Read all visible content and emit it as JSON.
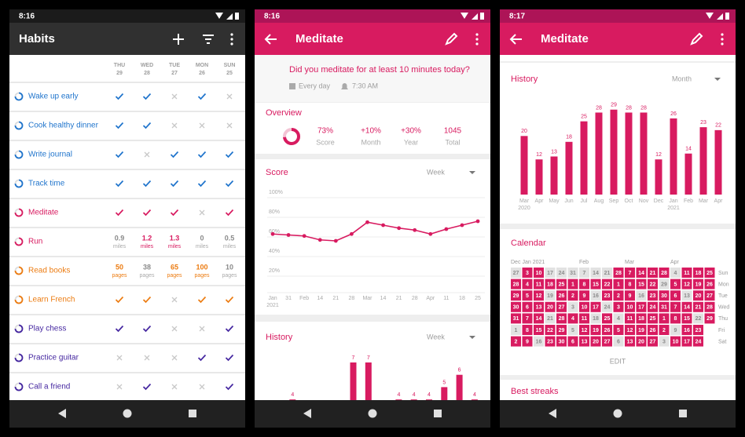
{
  "screens": [
    {
      "time": "8:16",
      "title": "Habits",
      "days": [
        {
          "weekday": "THU",
          "day": 29
        },
        {
          "weekday": "WED",
          "day": 28
        },
        {
          "weekday": "TUE",
          "day": 27
        },
        {
          "weekday": "MON",
          "day": 26
        },
        {
          "weekday": "SUN",
          "day": 25
        }
      ],
      "habits": [
        {
          "name": "Wake up early",
          "color": "#1f74cc",
          "checks": [
            true,
            true,
            false,
            true,
            false
          ]
        },
        {
          "name": "Cook healthy dinner",
          "color": "#1f74cc",
          "checks": [
            true,
            true,
            false,
            false,
            false
          ]
        },
        {
          "name": "Write journal",
          "color": "#1f74cc",
          "checks": [
            true,
            false,
            true,
            true,
            true
          ]
        },
        {
          "name": "Track time",
          "color": "#1f74cc",
          "checks": [
            true,
            true,
            true,
            true,
            true
          ]
        },
        {
          "name": "Meditate",
          "color": "#d81b60",
          "checks": [
            true,
            true,
            true,
            false,
            true
          ]
        },
        {
          "name": "Run",
          "color": "#d81b60",
          "unit": "miles",
          "values": [
            0.9,
            1.2,
            1.3,
            0,
            0.5
          ],
          "met": [
            false,
            true,
            true,
            false,
            false
          ]
        },
        {
          "name": "Read books",
          "color": "#ec7c12",
          "unit": "pages",
          "values": [
            50,
            38,
            65,
            100,
            10
          ],
          "met": [
            true,
            false,
            true,
            true,
            false
          ]
        },
        {
          "name": "Learn French",
          "color": "#ec7c12",
          "checks": [
            true,
            true,
            false,
            true,
            true
          ]
        },
        {
          "name": "Play chess",
          "color": "#4527a0",
          "checks": [
            true,
            true,
            false,
            false,
            true
          ]
        },
        {
          "name": "Practice guitar",
          "color": "#4527a0",
          "checks": [
            false,
            false,
            false,
            true,
            true
          ]
        },
        {
          "name": "Call a friend",
          "color": "#4527a0",
          "checks": [
            false,
            true,
            false,
            false,
            true
          ]
        }
      ]
    },
    {
      "time": "8:16",
      "title": "Meditate",
      "question": "Did you meditate for at least 10 minutes today?",
      "frequency": "Every day",
      "reminder": "7:30 AM",
      "overview": {
        "title": "Overview",
        "color": "#d81b60",
        "items": [
          {
            "value": 73,
            "label": "73%",
            "caption": "Score"
          },
          {
            "value": 10,
            "label": "+10%",
            "caption": "Month"
          },
          {
            "value": 30,
            "label": "+30%",
            "caption": "Year"
          },
          {
            "value": 1045,
            "caption": "Total"
          }
        ]
      },
      "score_chart": {
        "type": "line",
        "title": "Score",
        "period": "Week",
        "color": "#d81b60",
        "categories": [
          "Jan",
          "31",
          "Feb",
          "14",
          "21",
          "28",
          "Mar",
          "14",
          "21",
          "28",
          "Apr",
          "11",
          "18",
          "25"
        ],
        "sublabels": [
          "2021",
          null,
          null,
          null,
          null,
          null,
          null,
          null,
          null,
          null,
          null,
          null,
          null,
          null
        ],
        "values": [
          63,
          62,
          61,
          57,
          56,
          63,
          75,
          72,
          69,
          67,
          63,
          68,
          72,
          76
        ],
        "ylim": [
          0,
          100
        ],
        "yticks": [
          {
            "value": 20,
            "label": "20%"
          },
          {
            "value": 40,
            "label": "40%"
          },
          {
            "value": 60,
            "label": "60%"
          },
          {
            "value": 80,
            "label": "80%"
          },
          {
            "value": 100,
            "label": "100%"
          }
        ]
      },
      "history_chart": {
        "type": "bar",
        "title": "History",
        "period": "Week",
        "color": "#d81b60",
        "values": [
          null,
          4,
          null,
          null,
          null,
          7,
          7,
          null,
          4,
          4,
          4,
          5,
          6,
          4
        ],
        "ylim": [
          0,
          7
        ]
      }
    },
    {
      "time": "8:17",
      "title": "Meditate",
      "history_chart": {
        "type": "bar",
        "title": "History",
        "period": "Month",
        "color": "#d81b60",
        "categories": [
          "Mar",
          "Apr",
          "May",
          "Jun",
          "Jul",
          "Aug",
          "Sep",
          "Oct",
          "Nov",
          "Dec",
          "Jan",
          "Feb",
          "Mar",
          "Apr"
        ],
        "sublabels": [
          "2020",
          null,
          null,
          null,
          null,
          null,
          null,
          null,
          null,
          null,
          "2021",
          null,
          null,
          null
        ],
        "values": [
          20,
          12,
          13,
          18,
          25,
          28,
          29,
          28,
          28,
          12,
          26,
          14,
          23,
          22
        ],
        "ylim": [
          0,
          30
        ]
      },
      "calendar": {
        "title": "Calendar",
        "color": "#d81b60",
        "months": [
          "Dec",
          "Jan 2021",
          "Feb",
          "Mar",
          "Apr"
        ],
        "weekdays": [
          "Sun",
          "Mon",
          "Tue",
          "Wed",
          "Thu",
          "Fri",
          "Sat"
        ],
        "days": [
          [
            27,
            3,
            10,
            17,
            24,
            31,
            7,
            14,
            21,
            28,
            7,
            14,
            21,
            28,
            4,
            11,
            18,
            25
          ],
          [
            28,
            4,
            11,
            18,
            25,
            1,
            8,
            15,
            22,
            1,
            8,
            15,
            22,
            29,
            5,
            12,
            19,
            26
          ],
          [
            29,
            5,
            12,
            19,
            26,
            2,
            9,
            16,
            23,
            2,
            9,
            16,
            23,
            30,
            6,
            13,
            20,
            27
          ],
          [
            30,
            6,
            13,
            20,
            27,
            3,
            10,
            17,
            24,
            3,
            10,
            17,
            24,
            31,
            7,
            14,
            21,
            28
          ],
          [
            31,
            7,
            14,
            21,
            28,
            4,
            11,
            18,
            25,
            4,
            11,
            18,
            25,
            1,
            8,
            15,
            22,
            29
          ],
          [
            1,
            8,
            15,
            22,
            29,
            5,
            12,
            19,
            26,
            5,
            12,
            19,
            26,
            2,
            9,
            16,
            23,
            null
          ],
          [
            2,
            9,
            16,
            23,
            30,
            6,
            13,
            20,
            27,
            6,
            13,
            20,
            27,
            3,
            10,
            17,
            24,
            null
          ]
        ],
        "checked": [
          "011000000111110111",
          "111111111111101111",
          "111011101110111011",
          "111110110111111111",
          "111011101011111101",
          "011110111111110110",
          "110111111011101110"
        ]
      },
      "edit": "EDIT",
      "next_section": "Best streaks"
    }
  ]
}
